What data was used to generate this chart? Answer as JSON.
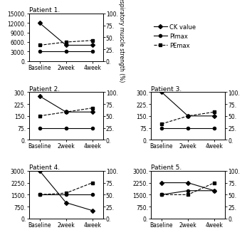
{
  "patients": [
    {
      "label": "Patient 1.",
      "ck": [
        12000,
        5000,
        5000
      ],
      "pimax": [
        3000,
        3000,
        3000
      ],
      "pemax": [
        5000,
        6000,
        6500
      ],
      "ylim_left": [
        0,
        15000
      ],
      "yticks_left": [
        0,
        3000,
        6000,
        9000,
        12000,
        15000
      ],
      "ylim_right": [
        0,
        100
      ],
      "yticks_right": [
        0,
        25,
        50,
        75,
        100
      ]
    },
    {
      "label": "Patient 2.",
      "ck": [
        275,
        175,
        175
      ],
      "pimax": [
        75,
        75,
        75
      ],
      "pemax": [
        150,
        175,
        200
      ],
      "ylim_left": [
        0,
        300
      ],
      "yticks_left": [
        0,
        75,
        150,
        225,
        300
      ],
      "ylim_right": [
        0,
        100
      ],
      "yticks_right": [
        0,
        25,
        50,
        75,
        100
      ]
    },
    {
      "label": "Patient 3.",
      "ck": [
        300,
        150,
        150
      ],
      "pimax": [
        75,
        75,
        75
      ],
      "pemax": [
        100,
        150,
        175
      ],
      "ylim_left": [
        0,
        300
      ],
      "yticks_left": [
        0,
        75,
        150,
        225,
        300
      ],
      "ylim_right": [
        0,
        100
      ],
      "yticks_right": [
        0,
        25,
        50,
        75,
        100
      ]
    },
    {
      "label": "Patient 4.",
      "ck": [
        3000,
        1000,
        500
      ],
      "pimax": [
        1500,
        1500,
        1500
      ],
      "pemax": [
        1500,
        1600,
        2250
      ],
      "ylim_left": [
        0,
        3000
      ],
      "yticks_left": [
        0,
        750,
        1500,
        2250,
        3000
      ],
      "ylim_right": [
        0,
        100
      ],
      "yticks_right": [
        0,
        25,
        50,
        75,
        100
      ]
    },
    {
      "label": "Patient 5.",
      "ck": [
        2250,
        2250,
        1750
      ],
      "pimax": [
        1500,
        1750,
        1750
      ],
      "pemax": [
        1500,
        1500,
        2250
      ],
      "ylim_left": [
        0,
        3000
      ],
      "yticks_left": [
        0,
        750,
        1500,
        2250,
        3000
      ],
      "ylim_right": [
        0,
        100
      ],
      "yticks_right": [
        0,
        25,
        50,
        75,
        100
      ]
    }
  ],
  "xticklabels": [
    "Baseline",
    "2week",
    "4week"
  ],
  "legend_labels": [
    "CK value",
    "PImax",
    "PEmax"
  ],
  "ylabel_right": "Respiratory muscle strength (%)",
  "background": "#ffffff",
  "title_fontsize": 6.5,
  "tick_fontsize": 5.5,
  "legend_fontsize": 6,
  "ylabel_fontsize": 5.5
}
